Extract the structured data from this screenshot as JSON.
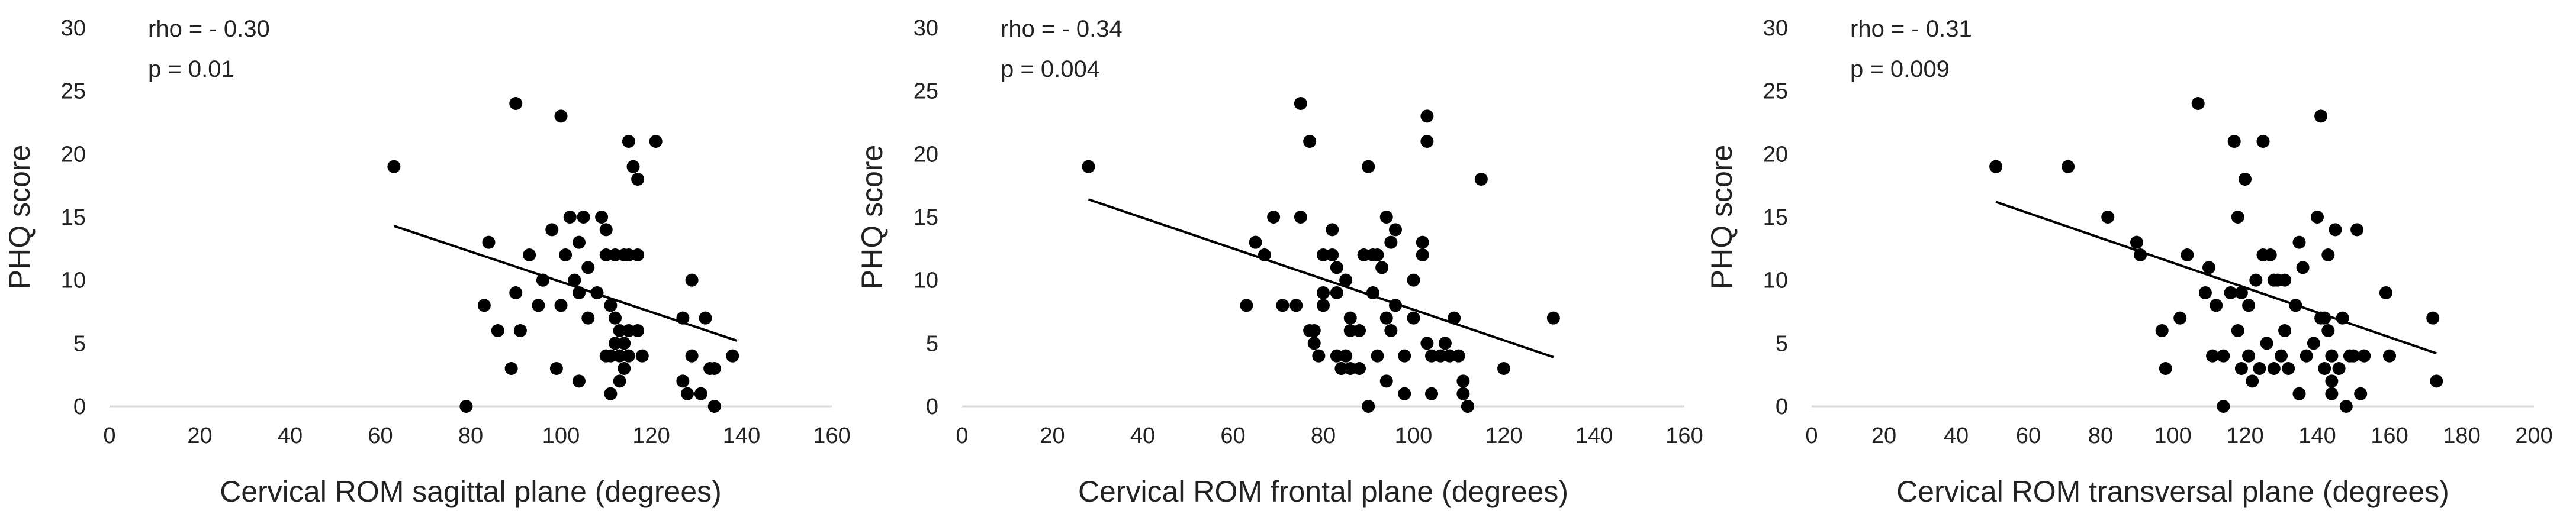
{
  "chart_data": [
    {
      "type": "scatter",
      "title": "",
      "xlabel": "Cervical ROM sagittal plane (degrees)",
      "ylabel": "PHQ score",
      "xlim": [
        0,
        160
      ],
      "ylim": [
        0,
        30
      ],
      "xticks": [
        0,
        20,
        40,
        60,
        80,
        100,
        120,
        140,
        160
      ],
      "yticks": [
        0,
        5,
        10,
        15,
        20,
        25,
        30
      ],
      "grid": false,
      "annotation": [
        "rho = - 0.30",
        "p = 0.01"
      ],
      "trendline": {
        "x": [
          63,
          139
        ],
        "y": [
          14.3,
          5.2
        ]
      },
      "points": [
        [
          63,
          19
        ],
        [
          79,
          0
        ],
        [
          83,
          8
        ],
        [
          84,
          13
        ],
        [
          86,
          6
        ],
        [
          89,
          3
        ],
        [
          90,
          9
        ],
        [
          90,
          24
        ],
        [
          91,
          6
        ],
        [
          93,
          12
        ],
        [
          95,
          8
        ],
        [
          96,
          10
        ],
        [
          96,
          10
        ],
        [
          98,
          14
        ],
        [
          99,
          3
        ],
        [
          100,
          23
        ],
        [
          100,
          8
        ],
        [
          101,
          12
        ],
        [
          102,
          15
        ],
        [
          103,
          10
        ],
        [
          104,
          9
        ],
        [
          104,
          13
        ],
        [
          104,
          2
        ],
        [
          105,
          15
        ],
        [
          106,
          7
        ],
        [
          106,
          11
        ],
        [
          108,
          9
        ],
        [
          109,
          15
        ],
        [
          110,
          14
        ],
        [
          110,
          4
        ],
        [
          110,
          12
        ],
        [
          111,
          8
        ],
        [
          111,
          1
        ],
        [
          111,
          4
        ],
        [
          112,
          7
        ],
        [
          112,
          5
        ],
        [
          112,
          12
        ],
        [
          113,
          4
        ],
        [
          113,
          2
        ],
        [
          113,
          6
        ],
        [
          114,
          12
        ],
        [
          114,
          5
        ],
        [
          114,
          3
        ],
        [
          115,
          21
        ],
        [
          115,
          12
        ],
        [
          115,
          4
        ],
        [
          115,
          6
        ],
        [
          116,
          19
        ],
        [
          117,
          18
        ],
        [
          117,
          12
        ],
        [
          117,
          6
        ],
        [
          118,
          4
        ],
        [
          121,
          21
        ],
        [
          127,
          7
        ],
        [
          127,
          2
        ],
        [
          128,
          1
        ],
        [
          129,
          10
        ],
        [
          129,
          4
        ],
        [
          131,
          1
        ],
        [
          132,
          7
        ],
        [
          133,
          3
        ],
        [
          134,
          3
        ],
        [
          134,
          0
        ],
        [
          138,
          4
        ]
      ]
    },
    {
      "type": "scatter",
      "title": "",
      "xlabel": "Cervical ROM frontal plane (degrees)",
      "ylabel": "PHQ score",
      "xlim": [
        0,
        160
      ],
      "ylim": [
        0,
        30
      ],
      "xticks": [
        0,
        20,
        40,
        60,
        80,
        100,
        120,
        140,
        160
      ],
      "yticks": [
        0,
        5,
        10,
        15,
        20,
        25,
        30
      ],
      "grid": false,
      "annotation": [
        "rho = - 0.34",
        "p = 0.004"
      ],
      "trendline": {
        "x": [
          28,
          131
        ],
        "y": [
          16.4,
          3.9
        ]
      },
      "points": [
        [
          28,
          19
        ],
        [
          63,
          8
        ],
        [
          65,
          13
        ],
        [
          67,
          12
        ],
        [
          69,
          15
        ],
        [
          71,
          8
        ],
        [
          74,
          8
        ],
        [
          75,
          15
        ],
        [
          75,
          24
        ],
        [
          77,
          21
        ],
        [
          77,
          6
        ],
        [
          78,
          5
        ],
        [
          78,
          6
        ],
        [
          79,
          4
        ],
        [
          80,
          9
        ],
        [
          80,
          8
        ],
        [
          80,
          12
        ],
        [
          82,
          14
        ],
        [
          82,
          12
        ],
        [
          83,
          11
        ],
        [
          83,
          9
        ],
        [
          83,
          4
        ],
        [
          84,
          3
        ],
        [
          84,
          3
        ],
        [
          85,
          10
        ],
        [
          85,
          4
        ],
        [
          86,
          7
        ],
        [
          86,
          3
        ],
        [
          86,
          6
        ],
        [
          88,
          6
        ],
        [
          88,
          3
        ],
        [
          89,
          12
        ],
        [
          90,
          19
        ],
        [
          90,
          0
        ],
        [
          91,
          12
        ],
        [
          91,
          9
        ],
        [
          92,
          4
        ],
        [
          92,
          12
        ],
        [
          93,
          11
        ],
        [
          94,
          15
        ],
        [
          94,
          7
        ],
        [
          94,
          2
        ],
        [
          95,
          13
        ],
        [
          95,
          6
        ],
        [
          96,
          14
        ],
        [
          96,
          8
        ],
        [
          98,
          4
        ],
        [
          98,
          1
        ],
        [
          100,
          7
        ],
        [
          100,
          10
        ],
        [
          102,
          12
        ],
        [
          102,
          13
        ],
        [
          103,
          23
        ],
        [
          103,
          21
        ],
        [
          103,
          5
        ],
        [
          104,
          4
        ],
        [
          104,
          1
        ],
        [
          106,
          4
        ],
        [
          107,
          5
        ],
        [
          108,
          4
        ],
        [
          109,
          7
        ],
        [
          110,
          4
        ],
        [
          111,
          2
        ],
        [
          111,
          1
        ],
        [
          112,
          0
        ],
        [
          112,
          0
        ],
        [
          115,
          18
        ],
        [
          120,
          3
        ],
        [
          131,
          7
        ]
      ]
    },
    {
      "type": "scatter",
      "title": "",
      "xlabel": "Cervical ROM transversal plane (degrees)",
      "ylabel": "PHQ score",
      "xlim": [
        0,
        200
      ],
      "ylim": [
        0,
        30
      ],
      "xticks": [
        0,
        20,
        40,
        60,
        80,
        100,
        120,
        140,
        160,
        180,
        200
      ],
      "yticks": [
        0,
        5,
        10,
        15,
        20,
        25,
        30
      ],
      "grid": false,
      "annotation": [
        "rho = - 0.31",
        "p = 0.009"
      ],
      "trendline": {
        "x": [
          51,
          173
        ],
        "y": [
          16.2,
          4.2
        ]
      },
      "points": [
        [
          51,
          19
        ],
        [
          71,
          19
        ],
        [
          82,
          15
        ],
        [
          90,
          13
        ],
        [
          91,
          12
        ],
        [
          97,
          6
        ],
        [
          98,
          3
        ],
        [
          102,
          7
        ],
        [
          104,
          12
        ],
        [
          107,
          24
        ],
        [
          109,
          9
        ],
        [
          110,
          11
        ],
        [
          111,
          4
        ],
        [
          112,
          8
        ],
        [
          114,
          0
        ],
        [
          114,
          4
        ],
        [
          116,
          9
        ],
        [
          117,
          21
        ],
        [
          118,
          15
        ],
        [
          118,
          6
        ],
        [
          119,
          9
        ],
        [
          119,
          3
        ],
        [
          120,
          18
        ],
        [
          121,
          8
        ],
        [
          121,
          4
        ],
        [
          122,
          2
        ],
        [
          123,
          10
        ],
        [
          124,
          3
        ],
        [
          125,
          21
        ],
        [
          125,
          12
        ],
        [
          126,
          5
        ],
        [
          127,
          12
        ],
        [
          128,
          3
        ],
        [
          128,
          10
        ],
        [
          129,
          10
        ],
        [
          130,
          4
        ],
        [
          131,
          6
        ],
        [
          131,
          10
        ],
        [
          132,
          3
        ],
        [
          134,
          8
        ],
        [
          135,
          13
        ],
        [
          135,
          1
        ],
        [
          136,
          11
        ],
        [
          137,
          4
        ],
        [
          139,
          5
        ],
        [
          140,
          15
        ],
        [
          141,
          7
        ],
        [
          141,
          23
        ],
        [
          142,
          7
        ],
        [
          142,
          3
        ],
        [
          143,
          12
        ],
        [
          143,
          6
        ],
        [
          144,
          2
        ],
        [
          144,
          4
        ],
        [
          144,
          1
        ],
        [
          145,
          14
        ],
        [
          146,
          3
        ],
        [
          147,
          7
        ],
        [
          148,
          0
        ],
        [
          149,
          4
        ],
        [
          150,
          4
        ],
        [
          151,
          14
        ],
        [
          152,
          1
        ],
        [
          153,
          4
        ],
        [
          159,
          9
        ],
        [
          160,
          4
        ],
        [
          172,
          7
        ],
        [
          173,
          2
        ]
      ]
    }
  ]
}
